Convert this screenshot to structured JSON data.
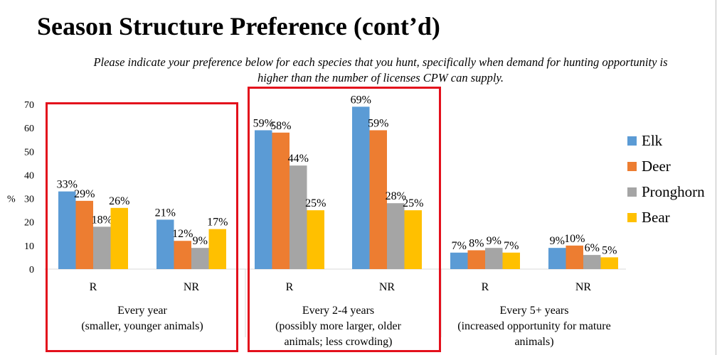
{
  "title": "Season Structure Preference (cont’d)",
  "subtitle": "Please indicate your preference below for each species that you hunt, specifically when demand for hunting opportunity is higher than the number of licenses CPW can supply.",
  "colors": {
    "highlight": "#e3101c",
    "frame": "#bdbdbd"
  },
  "chart_data": {
    "type": "bar",
    "ylabel": "%",
    "ylim": [
      0,
      70
    ],
    "yticks": [
      0,
      10,
      20,
      30,
      40,
      50,
      60,
      70
    ],
    "grid": false,
    "legend_position": "right",
    "groups": [
      {
        "label_lines": [
          "Every year",
          "(smaller, younger animals)"
        ],
        "categories": [
          "R",
          "NR"
        ]
      },
      {
        "label_lines": [
          "Every 2-4 years",
          "(possibly more larger, older",
          "animals; less crowding)"
        ],
        "categories": [
          "R",
          "NR"
        ]
      },
      {
        "label_lines": [
          "Every 5+ years",
          "(increased opportunity for mature",
          "animals)"
        ],
        "categories": [
          "R",
          "NR"
        ]
      }
    ],
    "series": [
      {
        "name": "Elk",
        "color": "#5b9bd5",
        "values": [
          33,
          21,
          59,
          69,
          7,
          9
        ]
      },
      {
        "name": "Deer",
        "color": "#ed7d31",
        "values": [
          29,
          12,
          58,
          59,
          8,
          10
        ]
      },
      {
        "name": "Pronghorn",
        "color": "#a5a5a5",
        "values": [
          18,
          9,
          44,
          28,
          9,
          6
        ]
      },
      {
        "name": "Bear",
        "color": "#ffc000",
        "values": [
          26,
          17,
          25,
          25,
          7,
          5
        ]
      }
    ]
  }
}
